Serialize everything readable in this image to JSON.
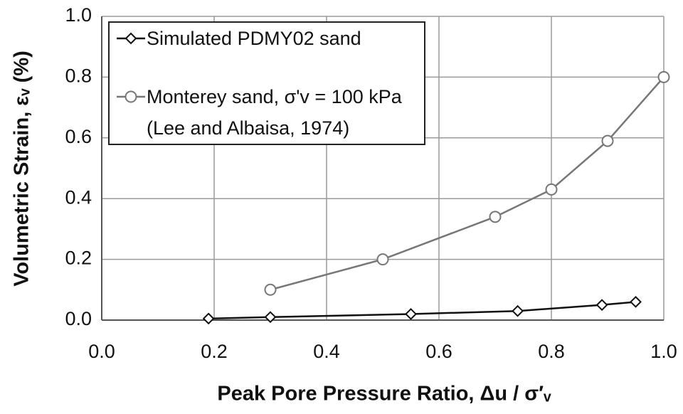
{
  "chart_data": {
    "type": "line",
    "xlabel": "Peak Pore Pressure Ratio, Δu / σ′ᵥ",
    "ylabel": "Volumetric Strain, εᵥ (%)",
    "xlim": [
      0,
      1
    ],
    "ylim": [
      0,
      1
    ],
    "xticks": [
      {
        "value": 0,
        "label": "0.0"
      },
      0.2,
      0.4,
      0.6,
      0.8,
      {
        "value": 1,
        "label": "1.0"
      }
    ],
    "yticks": [
      {
        "value": 0,
        "label": "0.0"
      },
      0.2,
      0.4,
      0.6,
      0.8,
      {
        "value": 1,
        "label": "1.0"
      }
    ],
    "grid": true,
    "legend": "upper left",
    "series": [
      {
        "name": "Simulated PDMY02 sand",
        "color": "#111111",
        "marker": "diamond",
        "x": [
          0.19,
          0.3,
          0.55,
          0.74,
          0.89,
          0.95
        ],
        "values": [
          0.005,
          0.01,
          0.02,
          0.03,
          0.05,
          0.06
        ]
      },
      {
        "name": "Monterey sand, σ'v = 100 kPa\n(Lee and Albaisa, 1974)",
        "color": "#777777",
        "marker": "circle",
        "x": [
          0.3,
          0.5,
          0.7,
          0.8,
          0.9,
          1.0
        ],
        "values": [
          0.1,
          0.2,
          0.34,
          0.43,
          0.59,
          0.8
        ]
      }
    ]
  }
}
